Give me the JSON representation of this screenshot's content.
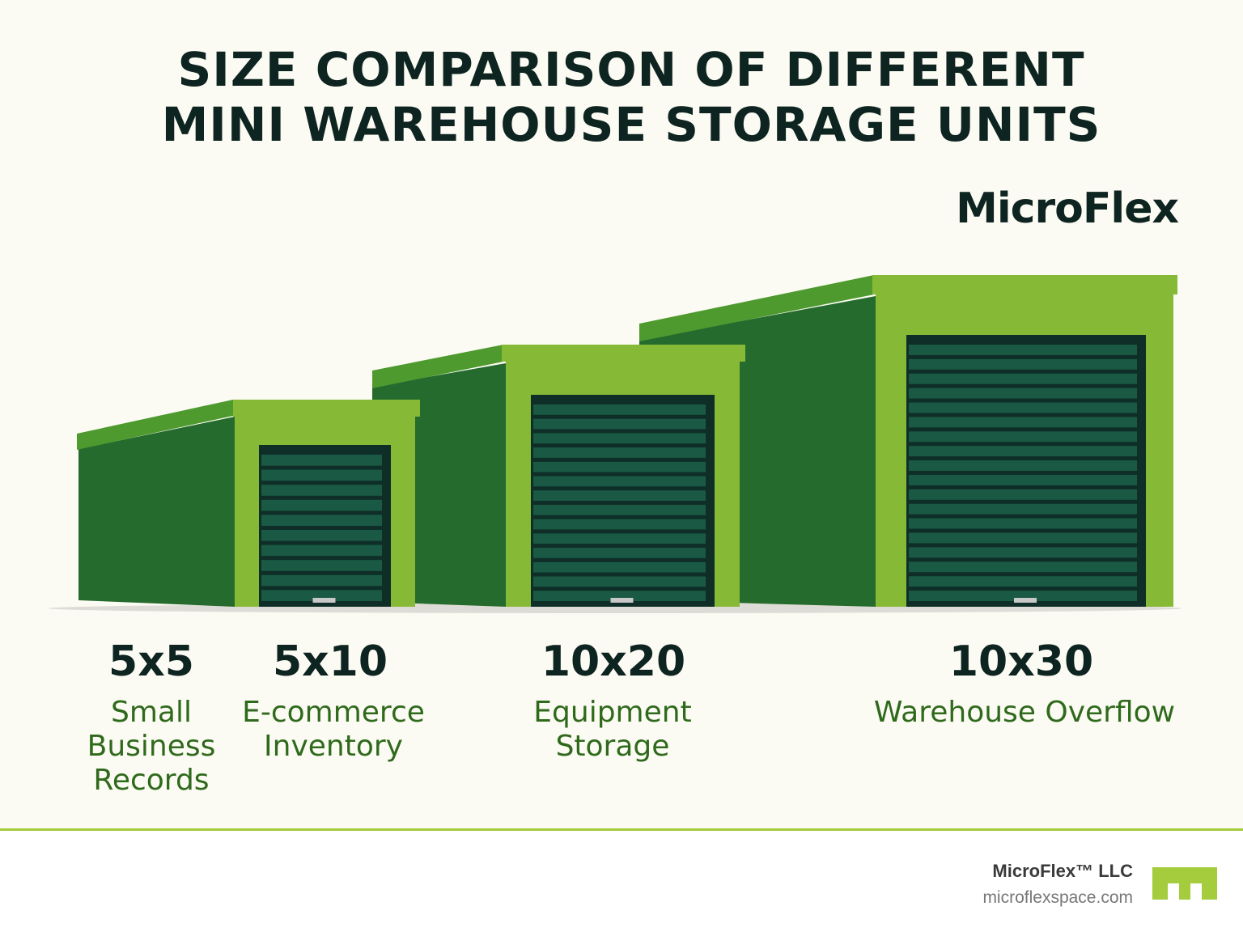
{
  "title": {
    "line1": "SIZE COMPARISON OF DIFFERENT",
    "line2": "MINI WAREHOUSE STORAGE UNITS"
  },
  "brand": "MicroFlex",
  "colors": {
    "background": "#fcfbf3",
    "frame": "#86b935",
    "wall": "#266b2e",
    "roof": "#4e9a2f",
    "door": "#0f2e28",
    "slat": "#1a5a44",
    "label": "#2f6a1c"
  },
  "units": [
    {
      "size": "5x5",
      "use": [
        "Small",
        "Business",
        "Records"
      ]
    },
    {
      "size": "5x10",
      "use": [
        "E-commerce",
        "Inventory"
      ]
    },
    {
      "size": "10x20",
      "use": [
        "Equipment",
        "Storage"
      ]
    },
    {
      "size": "10x30",
      "use": [
        "Warehouse Overflow"
      ]
    }
  ],
  "footer": {
    "company": "MicroFlex™ LLC",
    "url": "microflexspace.com",
    "logo_icon": "microflex-logo-icon"
  }
}
